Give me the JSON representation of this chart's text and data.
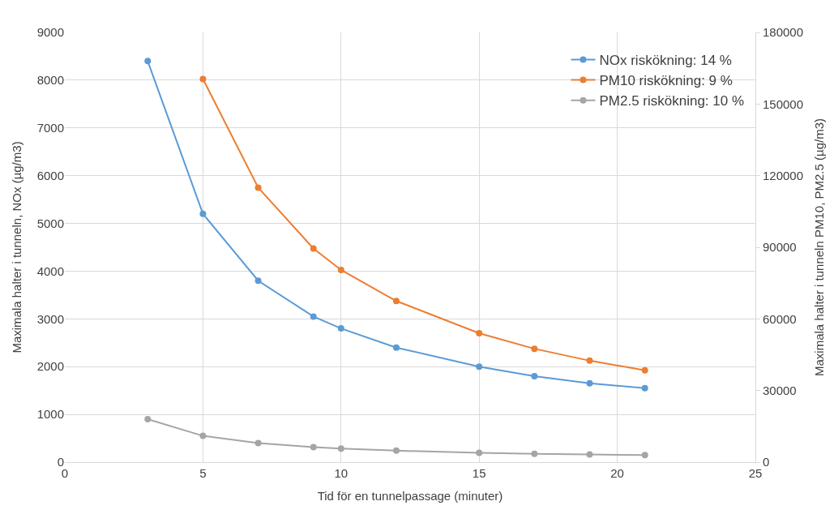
{
  "chart_data": {
    "type": "line",
    "xlabel": "Tid för en tunnelpassage (minuter)",
    "ylabel": "Maximala halter i tunneln, NOx (µg/m3)",
    "y2label": "Maximala halter i tunneln PM10, PM2.5 (µg/m3)",
    "x": [
      3,
      5,
      7,
      9,
      10,
      12,
      15,
      17,
      19,
      21
    ],
    "series": [
      {
        "name": "NOx riskökning: 14 %",
        "color": "#5b9bd5",
        "values": [
          8400,
          5200,
          3800,
          3050,
          2800,
          2400,
          2000,
          1800,
          1650,
          1550
        ]
      },
      {
        "name": "PM10 riskökning: 9 %",
        "color": "#ed7d31",
        "axis": "y2",
        "values": [
          null,
          160500,
          115000,
          89500,
          80500,
          67500,
          54000,
          47500,
          42500,
          38500
        ]
      },
      {
        "name": "PM2.5 riskökning: 10 %",
        "color": "#a5a5a5",
        "axis": "y2",
        "values": [
          18000,
          11000,
          8000,
          6300,
          5700,
          4800,
          3900,
          3500,
          3200,
          3000
        ]
      }
    ],
    "xlim": [
      0,
      25
    ],
    "xticks": [
      0,
      5,
      10,
      15,
      20,
      25
    ],
    "ylim": [
      0,
      9000
    ],
    "yticks": [
      0,
      1000,
      2000,
      3000,
      4000,
      5000,
      6000,
      7000,
      8000,
      9000
    ],
    "y2lim": [
      0,
      180000
    ],
    "y2ticks": [
      0,
      30000,
      60000,
      90000,
      120000,
      150000,
      180000
    ],
    "grid": true,
    "legend": "top right",
    "marker": "circle",
    "line_style": "solid"
  }
}
